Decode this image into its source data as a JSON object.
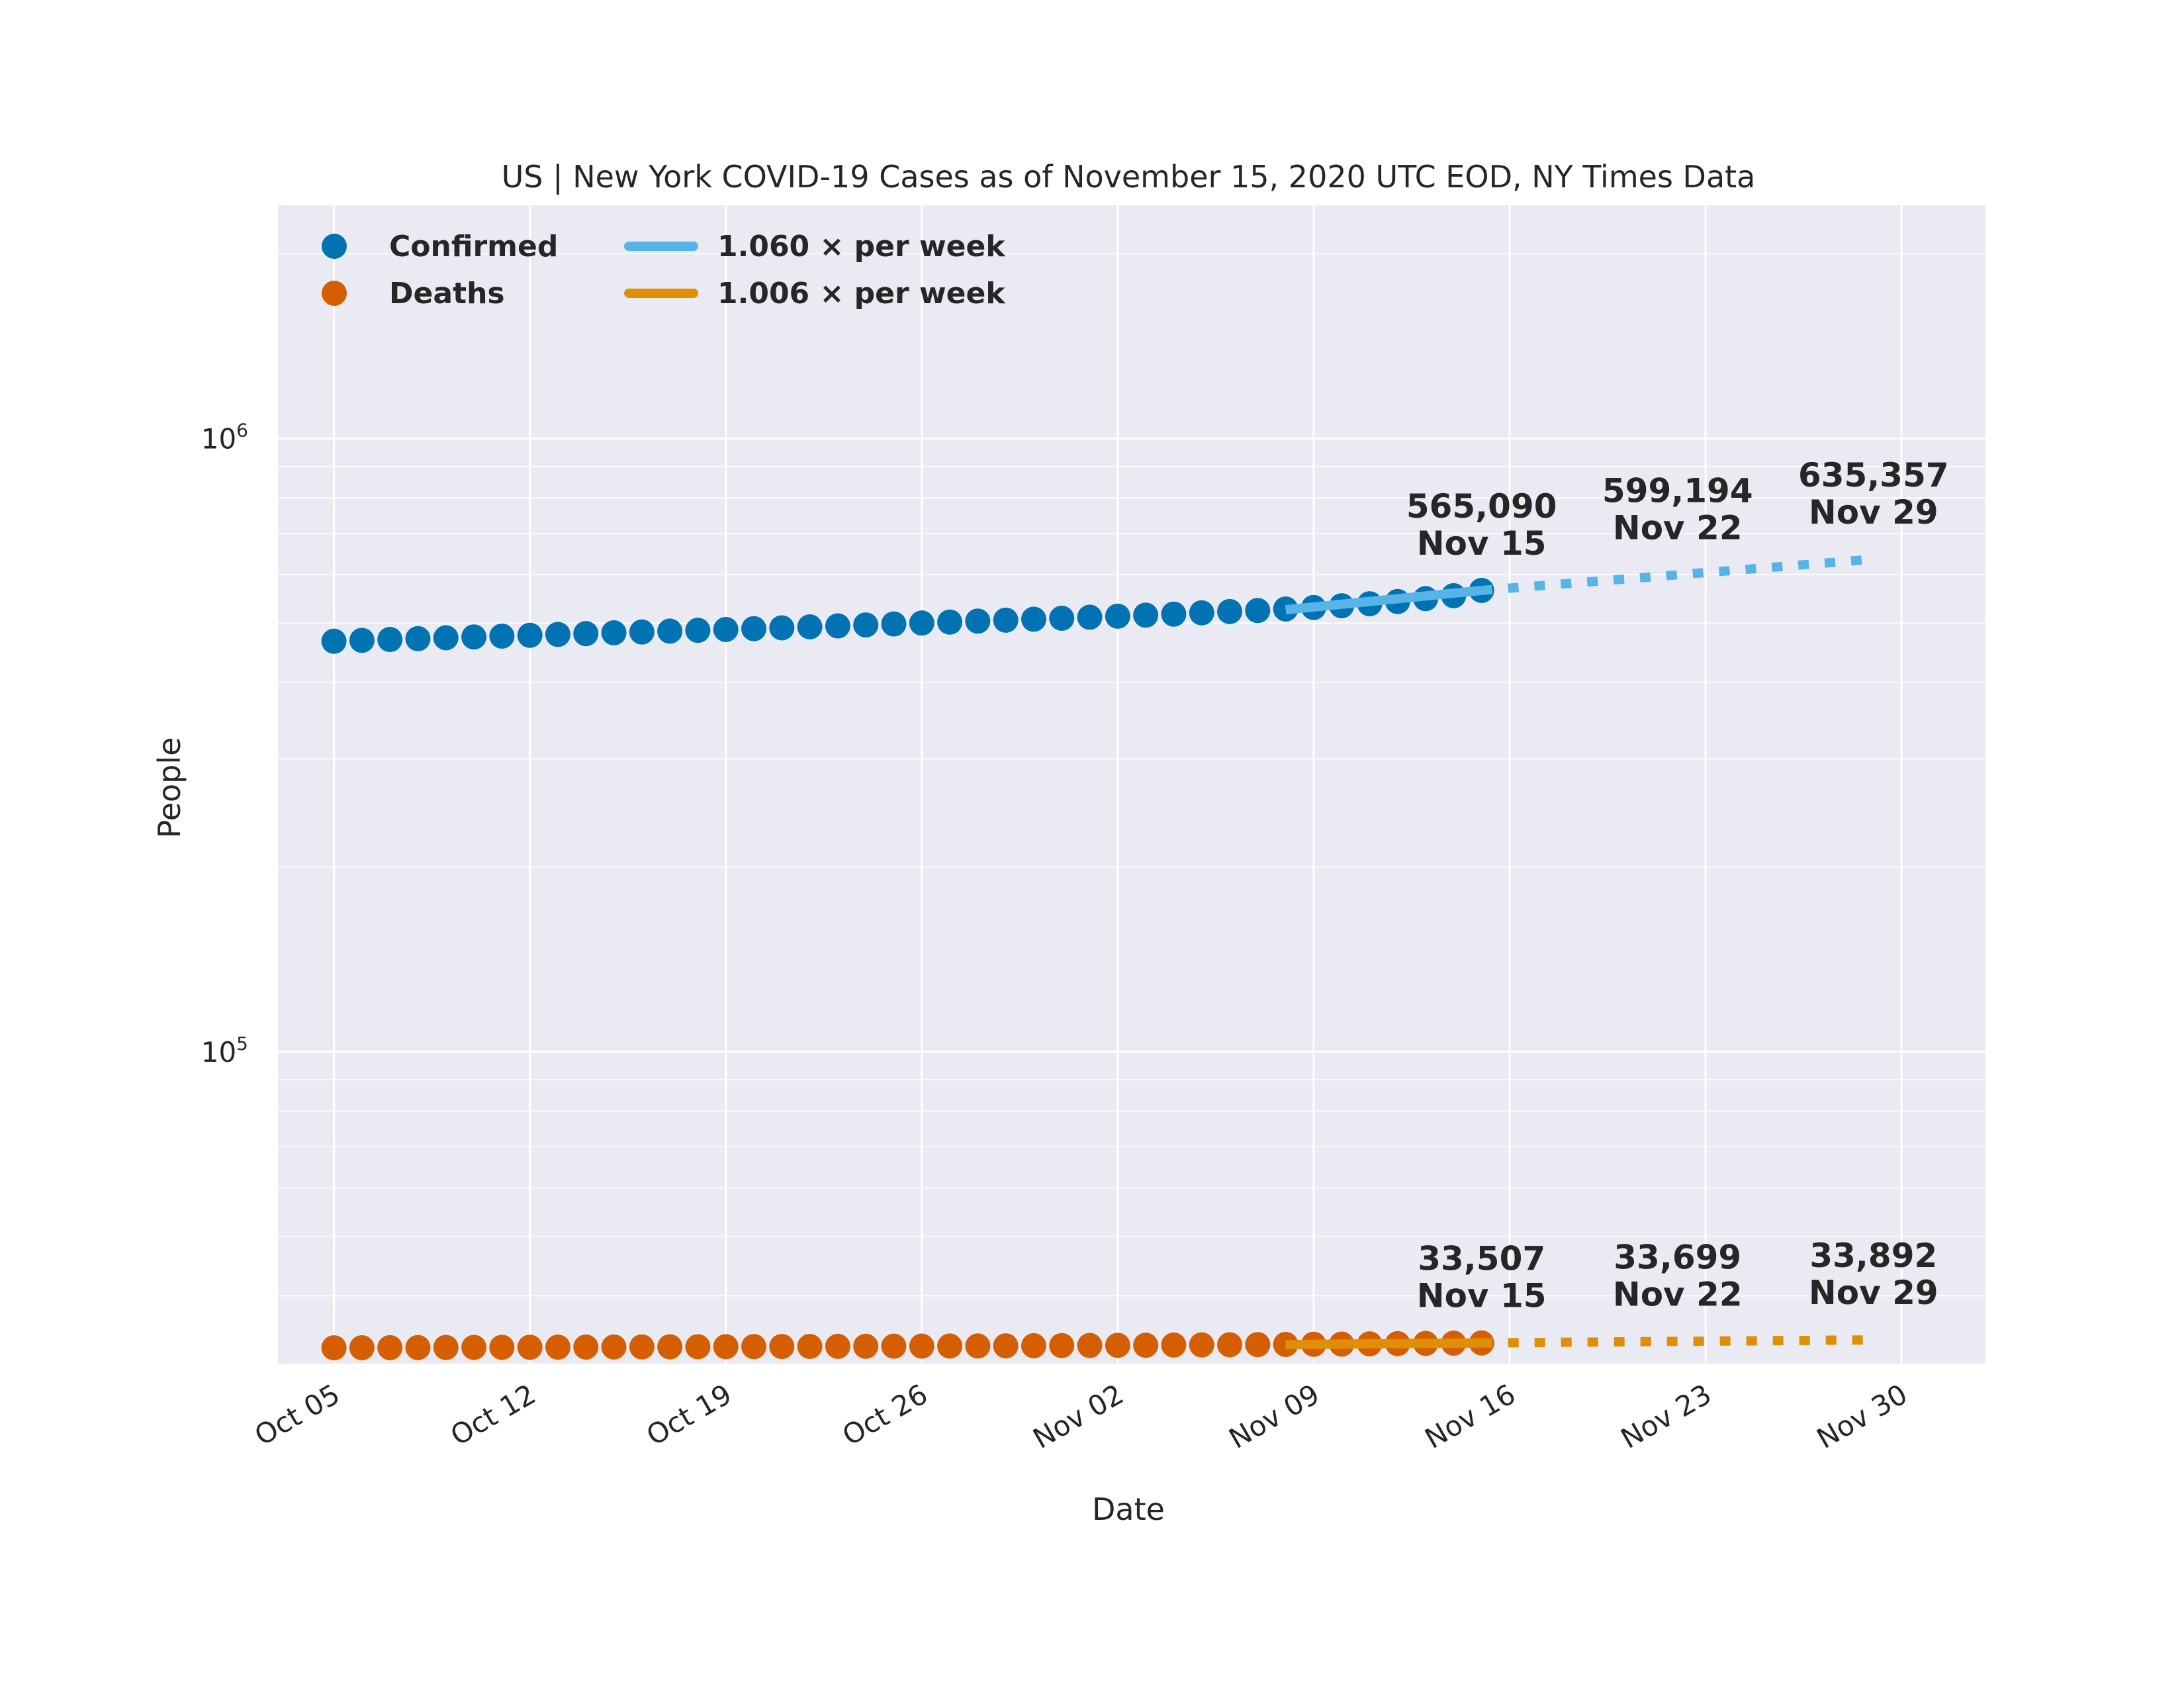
{
  "chart_data": {
    "type": "scatter",
    "title": "US | New York COVID-19 Cases as of November 15, 2020 UTC EOD, NY Times Data",
    "xlabel": "Date",
    "ylabel": "People",
    "yscale": "log",
    "ylim": [
      31000,
      2400000
    ],
    "xlim": [
      "2020-10-03",
      "2020-12-03"
    ],
    "grid": true,
    "legend_position": "top-left",
    "x_ticks": [
      "Oct 05",
      "Oct 12",
      "Oct 19",
      "Oct 26",
      "Nov 02",
      "Nov 09",
      "Nov 16",
      "Nov 23",
      "Nov 30"
    ],
    "x_tick_dates": [
      "2020-10-05",
      "2020-10-12",
      "2020-10-19",
      "2020-10-26",
      "2020-11-02",
      "2020-11-09",
      "2020-11-16",
      "2020-11-23",
      "2020-11-30"
    ],
    "y_ticks": [
      {
        "base": "10",
        "exp": "5",
        "value": 100000
      },
      {
        "base": "10",
        "exp": "6",
        "value": 1000000
      }
    ],
    "dates": [
      "2020-10-05",
      "2020-10-06",
      "2020-10-07",
      "2020-10-08",
      "2020-10-09",
      "2020-10-10",
      "2020-10-11",
      "2020-10-12",
      "2020-10-13",
      "2020-10-14",
      "2020-10-15",
      "2020-10-16",
      "2020-10-17",
      "2020-10-18",
      "2020-10-19",
      "2020-10-20",
      "2020-10-21",
      "2020-10-22",
      "2020-10-23",
      "2020-10-24",
      "2020-10-25",
      "2020-10-26",
      "2020-10-27",
      "2020-10-28",
      "2020-10-29",
      "2020-10-30",
      "2020-10-31",
      "2020-11-01",
      "2020-11-02",
      "2020-11-03",
      "2020-11-04",
      "2020-11-05",
      "2020-11-06",
      "2020-11-07",
      "2020-11-08",
      "2020-11-09",
      "2020-11-10",
      "2020-11-11",
      "2020-11-12",
      "2020-11-13",
      "2020-11-14",
      "2020-11-15"
    ],
    "series": [
      {
        "name": "Confirmed",
        "color": "#0173b2",
        "values": [
          467000,
          468500,
          470000,
          471500,
          473000,
          474500,
          476000,
          477500,
          479000,
          480500,
          482000,
          483500,
          485000,
          486500,
          488000,
          489500,
          491000,
          492800,
          494600,
          496400,
          498200,
          500000,
          501800,
          503600,
          505400,
          507200,
          509000,
          511000,
          513000,
          515000,
          517000,
          519500,
          522000,
          524000,
          527000,
          530000,
          533500,
          537500,
          542000,
          548000,
          554000,
          565090
        ]
      },
      {
        "name": "Deaths",
        "color": "#d55e00",
        "values": [
          32900,
          32910,
          32920,
          32930,
          32940,
          32950,
          32960,
          32970,
          32980,
          32990,
          33000,
          33010,
          33020,
          33030,
          33040,
          33050,
          33060,
          33070,
          33080,
          33090,
          33100,
          33110,
          33120,
          33130,
          33145,
          33160,
          33175,
          33190,
          33205,
          33220,
          33240,
          33260,
          33280,
          33300,
          33320,
          33340,
          33360,
          33390,
          33420,
          33450,
          33480,
          33507
        ]
      }
    ],
    "trends": [
      {
        "name": "1.060 × per week",
        "color": "#56b4e9",
        "fit_start": "2020-11-08",
        "fit_end": "2020-11-15",
        "start_value": 525500,
        "end_value": 565090,
        "projection_end": "2020-11-29",
        "projection_end_value": 635357
      },
      {
        "name": "1.006 × per week",
        "color": "#de8f05",
        "fit_start": "2020-11-08",
        "fit_end": "2020-11-15",
        "start_value": 33310,
        "end_value": 33507,
        "projection_end": "2020-11-29",
        "projection_end_value": 33892
      }
    ],
    "annotations": [
      {
        "date": "2020-11-15",
        "value": "565,090",
        "label": "Nov 15",
        "series": "Confirmed"
      },
      {
        "date": "2020-11-22",
        "value": "599,194",
        "label": "Nov 22",
        "series": "Confirmed"
      },
      {
        "date": "2020-11-29",
        "value": "635,357",
        "label": "Nov 29",
        "series": "Confirmed"
      },
      {
        "date": "2020-11-15",
        "value": "33,507",
        "label": "Nov 15",
        "series": "Deaths"
      },
      {
        "date": "2020-11-22",
        "value": "33,699",
        "label": "Nov 22",
        "series": "Deaths"
      },
      {
        "date": "2020-11-29",
        "value": "33,892",
        "label": "Nov 29",
        "series": "Deaths"
      }
    ],
    "legend": {
      "markers": [
        {
          "label": "Confirmed",
          "color": "#0173b2"
        },
        {
          "label": "Deaths",
          "color": "#d55e00"
        }
      ],
      "lines": [
        {
          "label": "1.060 × per week",
          "color": "#56b4e9"
        },
        {
          "label": "1.006 × per week",
          "color": "#de8f05"
        }
      ]
    }
  }
}
